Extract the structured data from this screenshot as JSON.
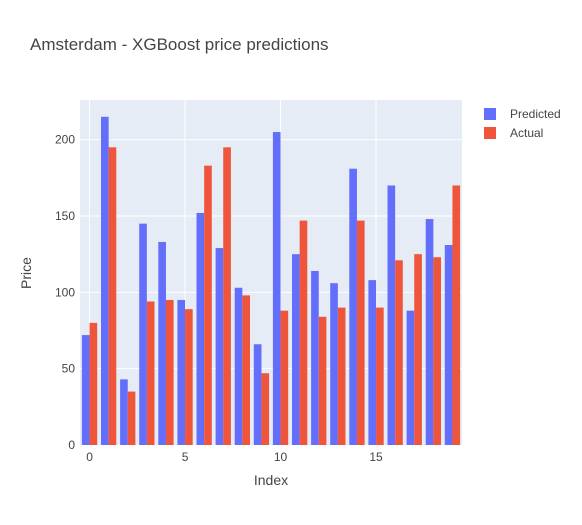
{
  "chart_data": {
    "type": "bar",
    "title": "Amsterdam - XGBoost price predictions",
    "xlabel": "Index",
    "ylabel": "Price",
    "categories": [
      0,
      1,
      2,
      3,
      4,
      5,
      6,
      7,
      8,
      9,
      10,
      11,
      12,
      13,
      14,
      15,
      16,
      17,
      18,
      19
    ],
    "series": [
      {
        "name": "Predicted",
        "color": "#636efa",
        "values": [
          72,
          215,
          43,
          145,
          133,
          95,
          152,
          129,
          103,
          66,
          205,
          125,
          114,
          106,
          181,
          108,
          170,
          88,
          148,
          131
        ]
      },
      {
        "name": "Actual",
        "color": "#ef553b",
        "values": [
          80,
          195,
          35,
          94,
          95,
          89,
          183,
          195,
          98,
          47,
          88,
          147,
          84,
          90,
          147,
          90,
          121,
          125,
          123,
          170
        ]
      }
    ],
    "ylim": [
      0,
      226
    ],
    "xlim": [
      -0.5,
      19.5
    ],
    "yticks": [
      0,
      50,
      100,
      150,
      200
    ],
    "xticks": [
      0,
      5,
      10,
      15
    ],
    "grid": true,
    "legend_position": "top-right",
    "plot_background": "#e5ecf6"
  }
}
